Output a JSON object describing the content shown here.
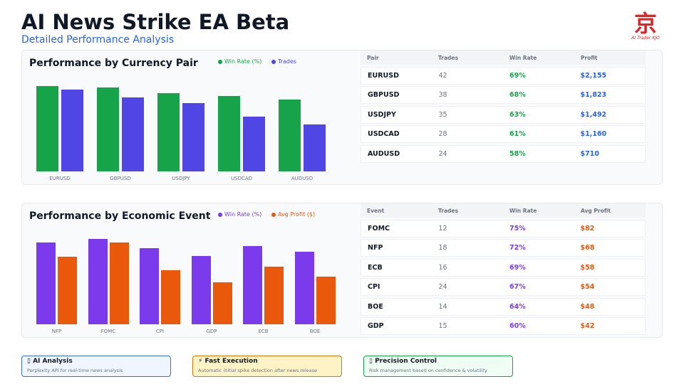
{
  "header": {
    "title": "AI News Strike EA Beta",
    "subtitle": "Detailed Performance Analysis",
    "logo_text": "京 AI Trader KJO"
  },
  "colors": {
    "green": "#16a34a",
    "indigo": "#4f46e5",
    "purple": "#7c3aed",
    "orange": "#ea580c",
    "blue": "#2563eb"
  },
  "pair_section": {
    "title": "Performance by Currency Pair",
    "legend": [
      "Win Rate (%)",
      "Trades"
    ],
    "table_headers": [
      "Pair",
      "Trades",
      "Win Rate",
      "Profit"
    ],
    "rows": [
      {
        "name": "EURUSD",
        "trades": "42",
        "win": "69%",
        "profit": "$2,155"
      },
      {
        "name": "GBPUSD",
        "trades": "38",
        "win": "68%",
        "profit": "$1,823"
      },
      {
        "name": "USDJPY",
        "trades": "35",
        "win": "63%",
        "profit": "$1,492"
      },
      {
        "name": "USDCAD",
        "trades": "28",
        "win": "61%",
        "profit": "$1,160"
      },
      {
        "name": "AUDUSD",
        "trades": "24",
        "win": "58%",
        "profit": "$710"
      }
    ]
  },
  "event_section": {
    "title": "Performance by Economic Event",
    "legend": [
      "Win Rate (%)",
      "Avg Profit ($)"
    ],
    "table_headers": [
      "Event",
      "Trades",
      "Win Rate",
      "Avg Profit"
    ],
    "rows": [
      {
        "name": "FOMC",
        "trades": "12",
        "win": "75%",
        "profit": "$82"
      },
      {
        "name": "NFP",
        "trades": "18",
        "win": "72%",
        "profit": "$68"
      },
      {
        "name": "ECB",
        "trades": "16",
        "win": "69%",
        "profit": "$58"
      },
      {
        "name": "CPI",
        "trades": "24",
        "win": "67%",
        "profit": "$54"
      },
      {
        "name": "BOE",
        "trades": "14",
        "win": "64%",
        "profit": "$48"
      },
      {
        "name": "GDP",
        "trades": "15",
        "win": "60%",
        "profit": "$42"
      }
    ]
  },
  "chart_data": [
    {
      "type": "bar",
      "categories": [
        "EURUSD",
        "GBPUSD",
        "USDJPY",
        "USDCAD",
        "AUDUSD"
      ],
      "series": [
        {
          "name": "Win Rate (%)",
          "values": [
            69,
            68,
            63,
            61,
            58
          ]
        },
        {
          "name": "Trades",
          "values": [
            42,
            38,
            35,
            28,
            24
          ]
        }
      ],
      "grid": false
    },
    {
      "type": "bar",
      "categories": [
        "NFP",
        "FOMC",
        "CPI",
        "GDP",
        "ECB",
        "BOE"
      ],
      "series": [
        {
          "name": "Win Rate (%)",
          "values": [
            72,
            75,
            67,
            60,
            69,
            64
          ]
        },
        {
          "name": "Avg Profit ($)",
          "values": [
            68,
            82,
            54,
            42,
            58,
            48
          ]
        }
      ],
      "grid": false
    }
  ],
  "features": [
    {
      "icon": "brain-icon",
      "glyph": "▯",
      "title": "AI Analysis",
      "desc": "Perplexity API for real-time news analysis",
      "bg": "#eff6ff",
      "border": "#3b6fc9"
    },
    {
      "icon": "lightning-icon",
      "glyph": "⚡",
      "title": "Fast Execution",
      "desc": "Automatic initial spike detection after news release",
      "bg": "#fef3c7",
      "border": "#d97706"
    },
    {
      "icon": "target-icon",
      "glyph": "▯",
      "title": "Precision Control",
      "desc": "Risk management based on confidence & volatility",
      "bg": "#f0fdf4",
      "border": "#16a34a"
    }
  ]
}
